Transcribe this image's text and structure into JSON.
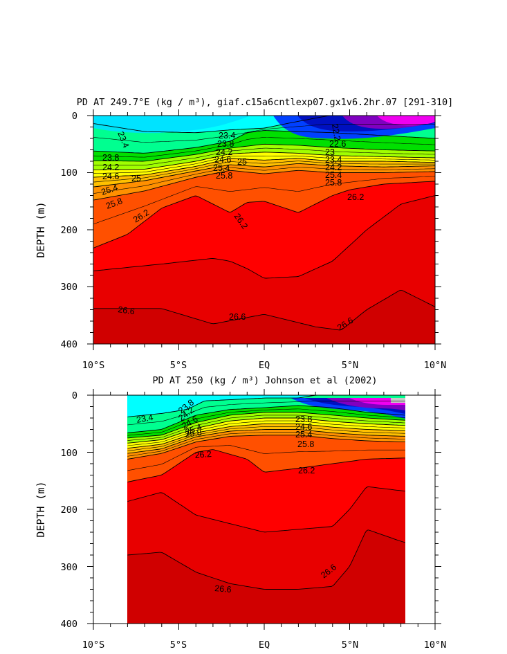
{
  "chart_data": [
    {
      "type": "contour",
      "title": "PD AT 249.7°E (kg / m³), giaf.c15a6cntlexp07.gx1v6.2hr.07 [291-310]",
      "xlabel": "",
      "ylabel": "DEPTH (m)",
      "x_ticks": [
        "10°S",
        "5°S",
        "EQ",
        "5°N",
        "10°N"
      ],
      "y_ticks": [
        "0",
        "100",
        "200",
        "300",
        "400"
      ],
      "xlim": [
        -10,
        10
      ],
      "ylim": [
        400,
        0
      ],
      "contour_interval": 0.4,
      "colors": [
        "#f000f0",
        "#a000d0",
        "#0010c0",
        "#0040ff",
        "#0080ff",
        "#00ccff",
        "#00ffff",
        "#00ff90",
        "#00e000",
        "#a0ff00",
        "#ffff00",
        "#ffc000",
        "#ff9000",
        "#ff5000",
        "#ff0000",
        "#d00000"
      ],
      "isopycnals": [
        {
          "sigma": 23.4,
          "x": [
            -10,
            -7,
            -4,
            -2,
            0,
            2,
            3.8
          ],
          "depth": [
            14,
            28,
            30,
            25,
            22,
            10,
            0
          ]
        },
        {
          "sigma": 23.8,
          "x": [
            -10,
            -7,
            -4,
            -2,
            -1,
            0,
            2,
            4,
            7,
            10
          ],
          "depth": [
            62,
            66,
            56,
            45,
            30,
            26,
            28,
            30,
            35,
            40
          ]
        },
        {
          "sigma": 24.2,
          "x": [
            -10,
            -7,
            -4,
            -2,
            0,
            2,
            4,
            7,
            10
          ],
          "depth": [
            79,
            80,
            68,
            57,
            50,
            52,
            56,
            60,
            62
          ]
        },
        {
          "sigma": 24.6,
          "x": [
            -10,
            -7,
            -4,
            -2,
            0,
            2,
            4,
            7,
            10
          ],
          "depth": [
            95,
            94,
            80,
            67,
            64,
            66,
            70,
            72,
            74
          ]
        },
        {
          "sigma": 25.0,
          "x": [
            -10,
            -7,
            -4,
            -2,
            0,
            2,
            4,
            7,
            10
          ],
          "depth": [
            108,
            104,
            89,
            75,
            78,
            75,
            80,
            80,
            82
          ]
        },
        {
          "sigma": 25.4,
          "x": [
            -10,
            -7,
            -4,
            -2,
            0,
            2,
            4,
            7,
            10
          ],
          "depth": [
            125,
            114,
            97,
            86,
            90,
            84,
            88,
            90,
            88
          ]
        },
        {
          "sigma": 25.8,
          "x": [
            -10,
            -7,
            -4,
            -2,
            0,
            2,
            4,
            7,
            10
          ],
          "depth": [
            148,
            132,
            108,
            96,
            102,
            96,
            100,
            100,
            98
          ]
        },
        {
          "sigma": 26.2,
          "x": [
            -10,
            -8,
            -6,
            -4,
            -3,
            -2,
            -1,
            0,
            2,
            4,
            5,
            7,
            10
          ],
          "depth": [
            232,
            208,
            162,
            140,
            155,
            170,
            152,
            150,
            170,
            140,
            130,
            120,
            115
          ]
        },
        {
          "sigma": 26.4,
          "x": [
            -10,
            -6,
            -3,
            -2,
            -1,
            0,
            2,
            4,
            6,
            8,
            10
          ],
          "depth": [
            272,
            260,
            250,
            255,
            268,
            285,
            282,
            255,
            200,
            155,
            140
          ]
        },
        {
          "sigma": 26.6,
          "x": [
            -10,
            -6,
            -3,
            0,
            3,
            4.5,
            6,
            8,
            10
          ],
          "depth": [
            338,
            338,
            365,
            348,
            370,
            376,
            340,
            305,
            335
          ]
        }
      ],
      "contour_labels": [
        "23.4",
        "23.8",
        "24.2",
        "24.6",
        "25",
        "25.4",
        "25.8",
        "26.2",
        "26.6",
        "22.2",
        "22.6",
        "23"
      ]
    },
    {
      "type": "contour",
      "title": "PD AT 250 (kg / m³) Johnson et al (2002)",
      "xlabel": "",
      "ylabel": "DEPTH (m)",
      "x_ticks": [
        "10°S",
        "5°S",
        "EQ",
        "5°N",
        "10°N"
      ],
      "y_ticks": [
        "0",
        "100",
        "200",
        "300",
        "400"
      ],
      "xlim": [
        -10,
        10
      ],
      "ylim": [
        400,
        0
      ],
      "data_x_range": [
        -8,
        8.2
      ],
      "contour_interval": 0.4,
      "isopycnals": [
        {
          "sigma": 23.4,
          "x": [
            -8,
            -6,
            -4.5,
            -3.5,
            -2,
            0,
            2,
            3
          ],
          "depth": [
            38,
            32,
            25,
            10,
            8,
            5,
            5,
            0
          ]
        },
        {
          "sigma": 23.8,
          "x": [
            -8,
            -6,
            -4,
            -2,
            0,
            2,
            4,
            6,
            8.2
          ],
          "depth": [
            66,
            60,
            35,
            25,
            22,
            18,
            22,
            30,
            35
          ]
        },
        {
          "sigma": 24.2,
          "x": [
            -8,
            -6,
            -4,
            -2,
            0,
            2,
            4,
            6,
            8.2
          ],
          "depth": [
            75,
            70,
            48,
            35,
            30,
            30,
            35,
            40,
            44
          ]
        },
        {
          "sigma": 24.6,
          "x": [
            -8,
            -6,
            -4,
            -2,
            0,
            2,
            4,
            6,
            8.2
          ],
          "depth": [
            84,
            78,
            58,
            45,
            40,
            40,
            46,
            50,
            53
          ]
        },
        {
          "sigma": 25.0,
          "x": [
            -8,
            -6,
            -4,
            -2,
            0,
            2,
            4,
            6,
            8.2
          ],
          "depth": [
            93,
            86,
            66,
            55,
            50,
            50,
            56,
            60,
            62
          ]
        },
        {
          "sigma": 25.4,
          "x": [
            -8,
            -6,
            -4,
            -2,
            0,
            2,
            4,
            6,
            8.2
          ],
          "depth": [
            102,
            94,
            73,
            63,
            60,
            60,
            66,
            70,
            72
          ]
        },
        {
          "sigma": 25.8,
          "x": [
            -8,
            -6,
            -4,
            -2,
            0,
            2,
            4,
            6,
            8.2
          ],
          "depth": [
            112,
            102,
            82,
            72,
            70,
            70,
            76,
            80,
            82
          ]
        },
        {
          "sigma": 26.2,
          "x": [
            -8,
            -6,
            -4,
            -3,
            -1,
            0,
            2,
            4,
            6,
            8.2
          ],
          "depth": [
            152,
            140,
            100,
            95,
            112,
            135,
            128,
            120,
            112,
            110
          ]
        },
        {
          "sigma": 26.4,
          "x": [
            -8,
            -6,
            -4,
            -2,
            0,
            2,
            4,
            5,
            6,
            8.2
          ],
          "depth": [
            186,
            170,
            210,
            225,
            240,
            235,
            230,
            200,
            160,
            168
          ]
        },
        {
          "sigma": 26.6,
          "x": [
            -8,
            -6,
            -4,
            -2,
            0,
            2,
            4,
            5,
            6,
            8.2
          ],
          "depth": [
            280,
            275,
            310,
            330,
            340,
            340,
            335,
            300,
            235,
            258
          ]
        }
      ],
      "contour_labels": [
        "23.4",
        "23.8",
        "24.2",
        "24.6",
        "25",
        "25.4",
        "25.8",
        "26.2",
        "26.6"
      ]
    }
  ]
}
